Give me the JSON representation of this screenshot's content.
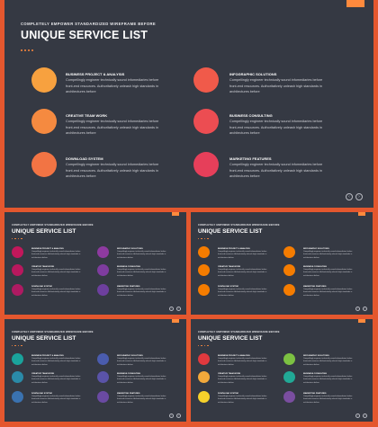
{
  "kicker": "COMPLETELY EMPOWER STANDARDIZED WIREFRAME BEFORE",
  "title": "UNIQUE SERVICE LIST",
  "tag_label": "",
  "services": [
    {
      "title": "BUSINESS PROJECT & ANALYSIS",
      "desc": "Compellingly engineer technically sound infomediaries before front-end resources. Authoritatively unleash high standards in architectures before"
    },
    {
      "title": "CREATIVE TEAM WORK",
      "desc": "Compellingly engineer technically sound infomediaries before front-end resources. Authoritatively unleash high standards in architectures before"
    },
    {
      "title": "DOWNLOAD SYSTEM",
      "desc": "Compellingly engineer technically sound infomediaries before front-end resources. Authoritatively unleash high standards in architectures before"
    },
    {
      "title": "INFOGRAPHIC SOLUTIONS",
      "desc": "Compellingly engineer technically sound infomediaries before front-end resources. Authoritatively unleash high standards in architectures before"
    },
    {
      "title": "BUSINESS CONSULTING",
      "desc": "Compellingly engineer technically sound infomediaries before front-end resources. Authoritatively unleash high standards in architectures before"
    },
    {
      "title": "MARKETING FEATURES",
      "desc": "Compellingly engineer technically sound infomediaries before front-end resources. Authoritatively unleash high standards in architectures before"
    }
  ],
  "variants": [
    {
      "name": "main",
      "colors": [
        "#f7a13f",
        "#f58a40",
        "#f27444",
        "#f05a4a",
        "#ec4d52",
        "#e63f5a"
      ]
    },
    {
      "name": "magenta-purple",
      "colors": [
        "#c2175b",
        "#b8185e",
        "#ae1a62",
        "#8e3aa0",
        "#7e3c9f",
        "#6d3f9e"
      ]
    },
    {
      "name": "orange",
      "colors": [
        "#f57c00",
        "#f57c00",
        "#f57c00",
        "#f57c00",
        "#f57c00",
        "#f57c00"
      ]
    },
    {
      "name": "teal-indigo",
      "colors": [
        "#1aa39c",
        "#2a8aa8",
        "#3a72b0",
        "#4a5cae",
        "#5a53a8",
        "#6a4aa2"
      ]
    },
    {
      "name": "multicolor",
      "colors": [
        "#e0393e",
        "#f2a93b",
        "#f6d12b",
        "#7cc142",
        "#21a996",
        "#7a4ea0"
      ]
    }
  ],
  "nav": {
    "prev": "‹",
    "next": "›"
  }
}
